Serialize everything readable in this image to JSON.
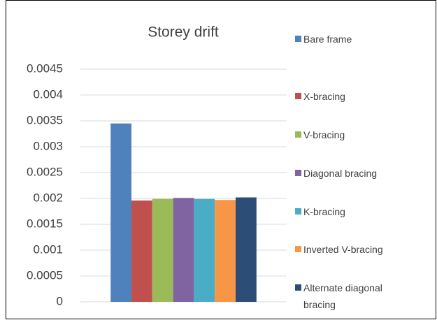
{
  "chart_data": {
    "type": "bar",
    "title": "Storey drift",
    "categories": [
      null
    ],
    "series": [
      {
        "name": "Bare frame",
        "color": "#4f81bd",
        "values": [
          0.00345
        ]
      },
      {
        "name": "X-bracing",
        "color": "#c0504d",
        "values": [
          0.00196
        ]
      },
      {
        "name": "V-bracing",
        "color": "#9bbb59",
        "values": [
          0.00199
        ]
      },
      {
        "name": "Diagonal bracing",
        "color": "#8064a2",
        "values": [
          0.00201
        ]
      },
      {
        "name": "K-bracing",
        "color": "#4bacc6",
        "values": [
          0.00199
        ]
      },
      {
        "name": "Inverted V-bracing",
        "color": "#f79646",
        "values": [
          0.00197
        ]
      },
      {
        "name": "Alternate diagonal bracing",
        "color": "#2c4d75",
        "values": [
          0.00202
        ]
      }
    ],
    "ylim": [
      0,
      0.0045
    ],
    "yticks": [
      0,
      0.0005,
      0.001,
      0.0015,
      0.002,
      0.0025,
      0.003,
      0.0035,
      0.004,
      0.0045
    ],
    "grid": true,
    "legend": "right"
  }
}
